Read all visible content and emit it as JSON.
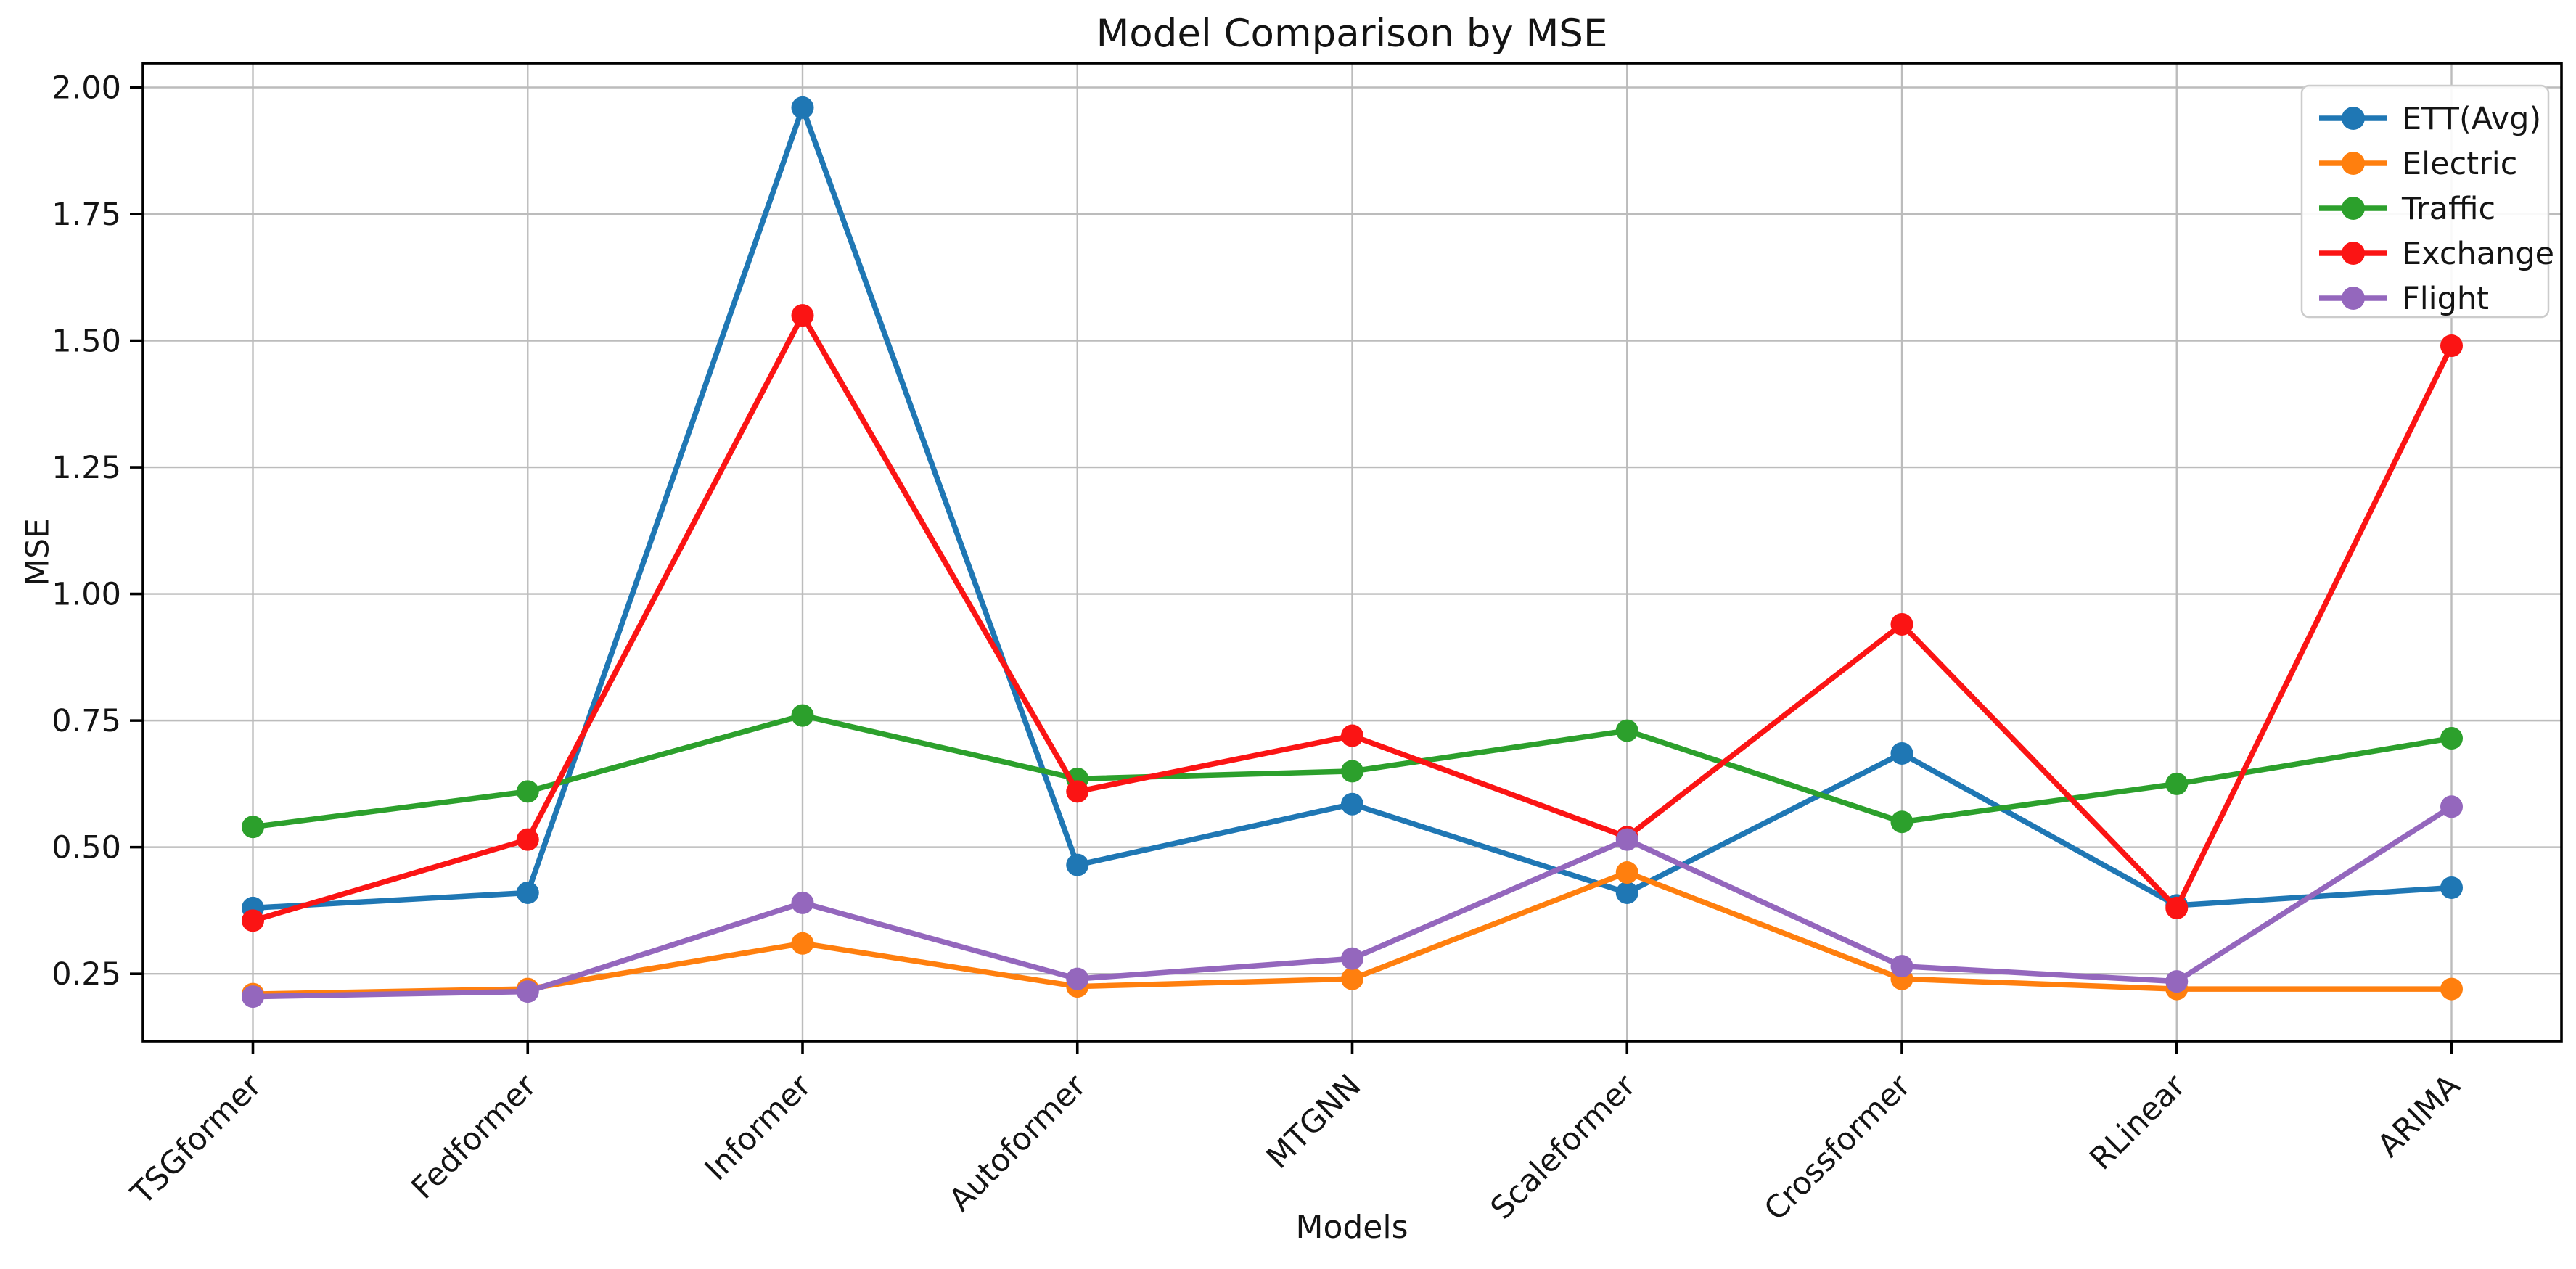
{
  "chart_data": {
    "type": "line",
    "title": "Model Comparison by MSE",
    "xlabel": "Models",
    "ylabel": "MSE",
    "categories": [
      "TSGformer",
      "Fedformer",
      "Informer",
      "Autoformer",
      "MTGNN",
      "Scaleformer",
      "Crossformer",
      "RLinear",
      "ARIMA"
    ],
    "series": [
      {
        "name": "ETT(Avg)",
        "color": "#1f77b4",
        "marker": "circle",
        "linestyle": "solid",
        "values": [
          0.38,
          0.41,
          1.96,
          0.465,
          0.585,
          0.41,
          0.685,
          0.385,
          0.42
        ]
      },
      {
        "name": "Electric",
        "color": "#ff7f0e",
        "marker": "circle",
        "linestyle": "solid",
        "values": [
          0.21,
          0.22,
          0.31,
          0.225,
          0.24,
          0.45,
          0.24,
          0.22,
          0.22
        ]
      },
      {
        "name": "Traffic",
        "color": "#2ca02c",
        "marker": "circle",
        "linestyle": "solid",
        "values": [
          0.54,
          0.61,
          0.76,
          0.635,
          0.65,
          0.73,
          0.55,
          0.625,
          0.715
        ]
      },
      {
        "name": "Exchange",
        "color": "#fb1414",
        "marker": "circle",
        "linestyle": "solid",
        "values": [
          0.355,
          0.515,
          1.55,
          0.61,
          0.72,
          0.52,
          0.94,
          0.38,
          1.49
        ]
      },
      {
        "name": "Flight",
        "color": "#9467bd",
        "marker": "circle",
        "linestyle": "solid",
        "values": [
          0.205,
          0.215,
          0.39,
          0.24,
          0.28,
          0.515,
          0.265,
          0.235,
          0.58
        ]
      }
    ],
    "yticks": [
      0.25,
      0.5,
      0.75,
      1.0,
      1.25,
      1.5,
      1.75,
      2.0
    ],
    "ytick_labels": [
      "0.25",
      "0.50",
      "0.75",
      "1.00",
      "1.25",
      "1.50",
      "1.75",
      "2.00"
    ],
    "ylim": [
      0.117,
      2.048
    ],
    "grid": true,
    "legend_position": "upper right",
    "grid_color": "#bcbcbc",
    "axis_color": "#000000",
    "text_color": "#141414"
  }
}
